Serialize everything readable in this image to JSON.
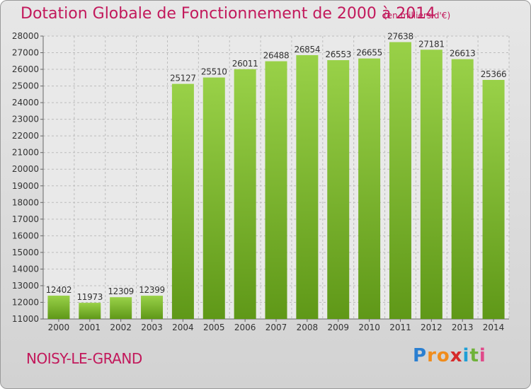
{
  "title": "Dotation Globale de Fonctionnement de 2000 à 2014",
  "subtitle": "(en milliers d'€)",
  "commune": "NOISY-LE-GRAND",
  "logo": {
    "letters": [
      "P",
      "r",
      "o",
      "x",
      "i",
      "t",
      "i"
    ],
    "colors": [
      "#2a7fd1",
      "#f08c1c",
      "#f08c1c",
      "#d62a2a",
      "#1e9fd6",
      "#6fb23a",
      "#e04a8a"
    ]
  },
  "colors": {
    "bar_top": "#99d148",
    "bar_bottom": "#5f9818",
    "title": "#c2185b",
    "grid": "#bdbdbd"
  },
  "chart_data": {
    "type": "bar",
    "categories": [
      "2000",
      "2001",
      "2002",
      "2003",
      "2004",
      "2005",
      "2006",
      "2007",
      "2008",
      "2009",
      "2010",
      "2011",
      "2012",
      "2013",
      "2014"
    ],
    "values": [
      12402,
      11973,
      12309,
      12399,
      25127,
      25510,
      26011,
      26488,
      26854,
      26553,
      26655,
      27638,
      27181,
      26613,
      25366
    ],
    "ylim": [
      11000,
      28000
    ],
    "yticks": [
      11000,
      12000,
      13000,
      14000,
      15000,
      16000,
      17000,
      18000,
      19000,
      20000,
      21000,
      22000,
      23000,
      24000,
      25000,
      26000,
      27000,
      28000
    ],
    "grid": true
  }
}
